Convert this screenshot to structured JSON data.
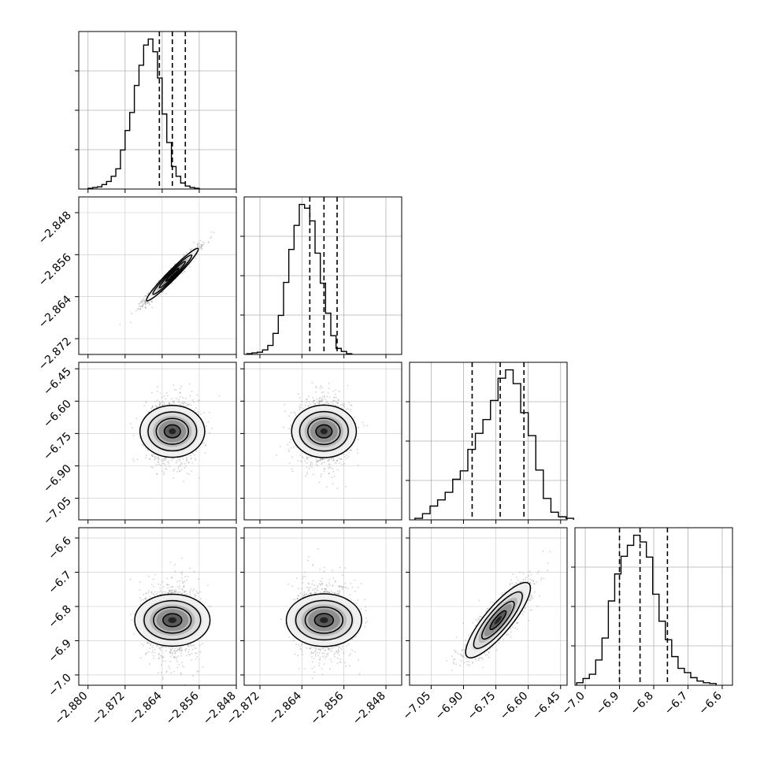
{
  "chart_data": {
    "type": "corner",
    "params": [
      {
        "range": [
          -2.882,
          -2.848
        ],
        "ticks": [
          -2.88,
          -2.872,
          -2.864,
          -2.856,
          -2.848
        ],
        "tick_labels": [
          "−2.880",
          "−2.872",
          "−2.864",
          "−2.856",
          "−2.848"
        ]
      },
      {
        "range": [
          -2.875,
          -2.845
        ],
        "ticks": [
          -2.848,
          -2.856,
          -2.864,
          -2.872
        ],
        "tick_labels": [
          "−2.848",
          "−2.856",
          "−2.864",
          "−2.872"
        ]
      },
      {
        "range": [
          -7.15,
          -6.42
        ],
        "ticks": [
          -6.45,
          -6.6,
          -6.75,
          -6.9,
          -7.05
        ],
        "tick_labels": [
          "−6.45",
          "−6.60",
          "−6.75",
          "−6.90",
          "−7.05"
        ]
      },
      {
        "range": [
          -7.03,
          -6.57
        ],
        "ticks": [
          -6.6,
          -6.7,
          -6.8,
          -6.9,
          -7.0
        ],
        "tick_labels": [
          "−6.6",
          "−6.7",
          "−6.8",
          "−6.9",
          "−7.0"
        ]
      }
    ],
    "bottom_tick_labels": [
      [
        "−2.880",
        "−2.872",
        "−2.864",
        "−2.856",
        "−2.848"
      ],
      [
        "−2.872",
        "−2.864",
        "−2.856",
        "−2.848"
      ],
      [
        "−7.05",
        "−6.90",
        "−6.75",
        "−6.60",
        "−6.45"
      ],
      [
        "−7.0",
        "−6.9",
        "−6.8",
        "−6.7",
        "−6.6"
      ]
    ],
    "left_tick_labels": [
      [
        "−2.848",
        "−2.856",
        "−2.864",
        "−2.872"
      ],
      [
        "−6.45",
        "−6.60",
        "−6.75",
        "−6.90",
        "−7.05"
      ],
      [
        "−6.6",
        "−6.7",
        "−6.8",
        "−6.9",
        "−7.0"
      ]
    ],
    "histograms": [
      {
        "bin_start": -2.88,
        "bin_width": 0.001,
        "counts": [
          1,
          2,
          3,
          6,
          10,
          17,
          27,
          52,
          78,
          102,
          138,
          165,
          192,
          200,
          183,
          148,
          100,
          62,
          30,
          17,
          8,
          4,
          2,
          1
        ],
        "quantiles": [
          -2.8646,
          -2.8618,
          -2.859
        ]
      },
      {
        "bin_start": -2.8745,
        "bin_width": 0.001,
        "counts": [
          1,
          2,
          3,
          6,
          12,
          28,
          52,
          96,
          140,
          172,
          200,
          195,
          178,
          135,
          95,
          55,
          25,
          8,
          4,
          1
        ],
        "quantiles": [
          -2.8625,
          -2.8598,
          -2.8573
        ]
      },
      {
        "bin_start": -7.125,
        "bin_width": 0.035,
        "counts": [
          2,
          8,
          18,
          26,
          36,
          53,
          64,
          92,
          113,
          131,
          156,
          185,
          196,
          178,
          140,
          110,
          65,
          28,
          10,
          4,
          2
        ],
        "quantiles": [
          -6.86,
          -6.73,
          -6.62
        ]
      },
      {
        "bin_start": -7.025,
        "bin_width": 0.0185,
        "counts": [
          3,
          8,
          13,
          30,
          56,
          100,
          132,
          153,
          166,
          178,
          170,
          152,
          108,
          76,
          54,
          34,
          20,
          15,
          9,
          5,
          3,
          2
        ],
        "quantiles": [
          -6.9,
          -6.84,
          -6.76
        ]
      }
    ],
    "scatter_2d": [
      {
        "row": 1,
        "col": 0,
        "mean": [
          -2.8618,
          -2.8598
        ],
        "std": [
          0.0028,
          0.0025
        ],
        "corr": 0.97
      },
      {
        "row": 2,
        "col": 0,
        "mean": [
          -2.8618,
          -6.74
        ],
        "std": [
          0.0028,
          0.075
        ],
        "corr": 0.0
      },
      {
        "row": 2,
        "col": 1,
        "mean": [
          -2.8598,
          -6.74
        ],
        "std": [
          0.0025,
          0.075
        ],
        "corr": 0.0
      },
      {
        "row": 3,
        "col": 0,
        "mean": [
          -2.8618,
          -6.84
        ],
        "std": [
          0.0028,
          0.055
        ],
        "corr": 0.0
      },
      {
        "row": 3,
        "col": 1,
        "mean": [
          -2.8598,
          -6.84
        ],
        "std": [
          0.0025,
          0.055
        ],
        "corr": 0.0
      },
      {
        "row": 3,
        "col": 2,
        "mean": [
          -6.74,
          -6.84
        ],
        "std": [
          0.075,
          0.055
        ],
        "corr": 0.85
      }
    ],
    "contour_levels_sigma": [
      0.5,
      1.0,
      1.5,
      2.0
    ],
    "grid": true,
    "colors": {
      "hist_line": "#000000",
      "contour": "#000000",
      "points": "#7f7f7f",
      "grid": "#b0b0b0"
    }
  }
}
